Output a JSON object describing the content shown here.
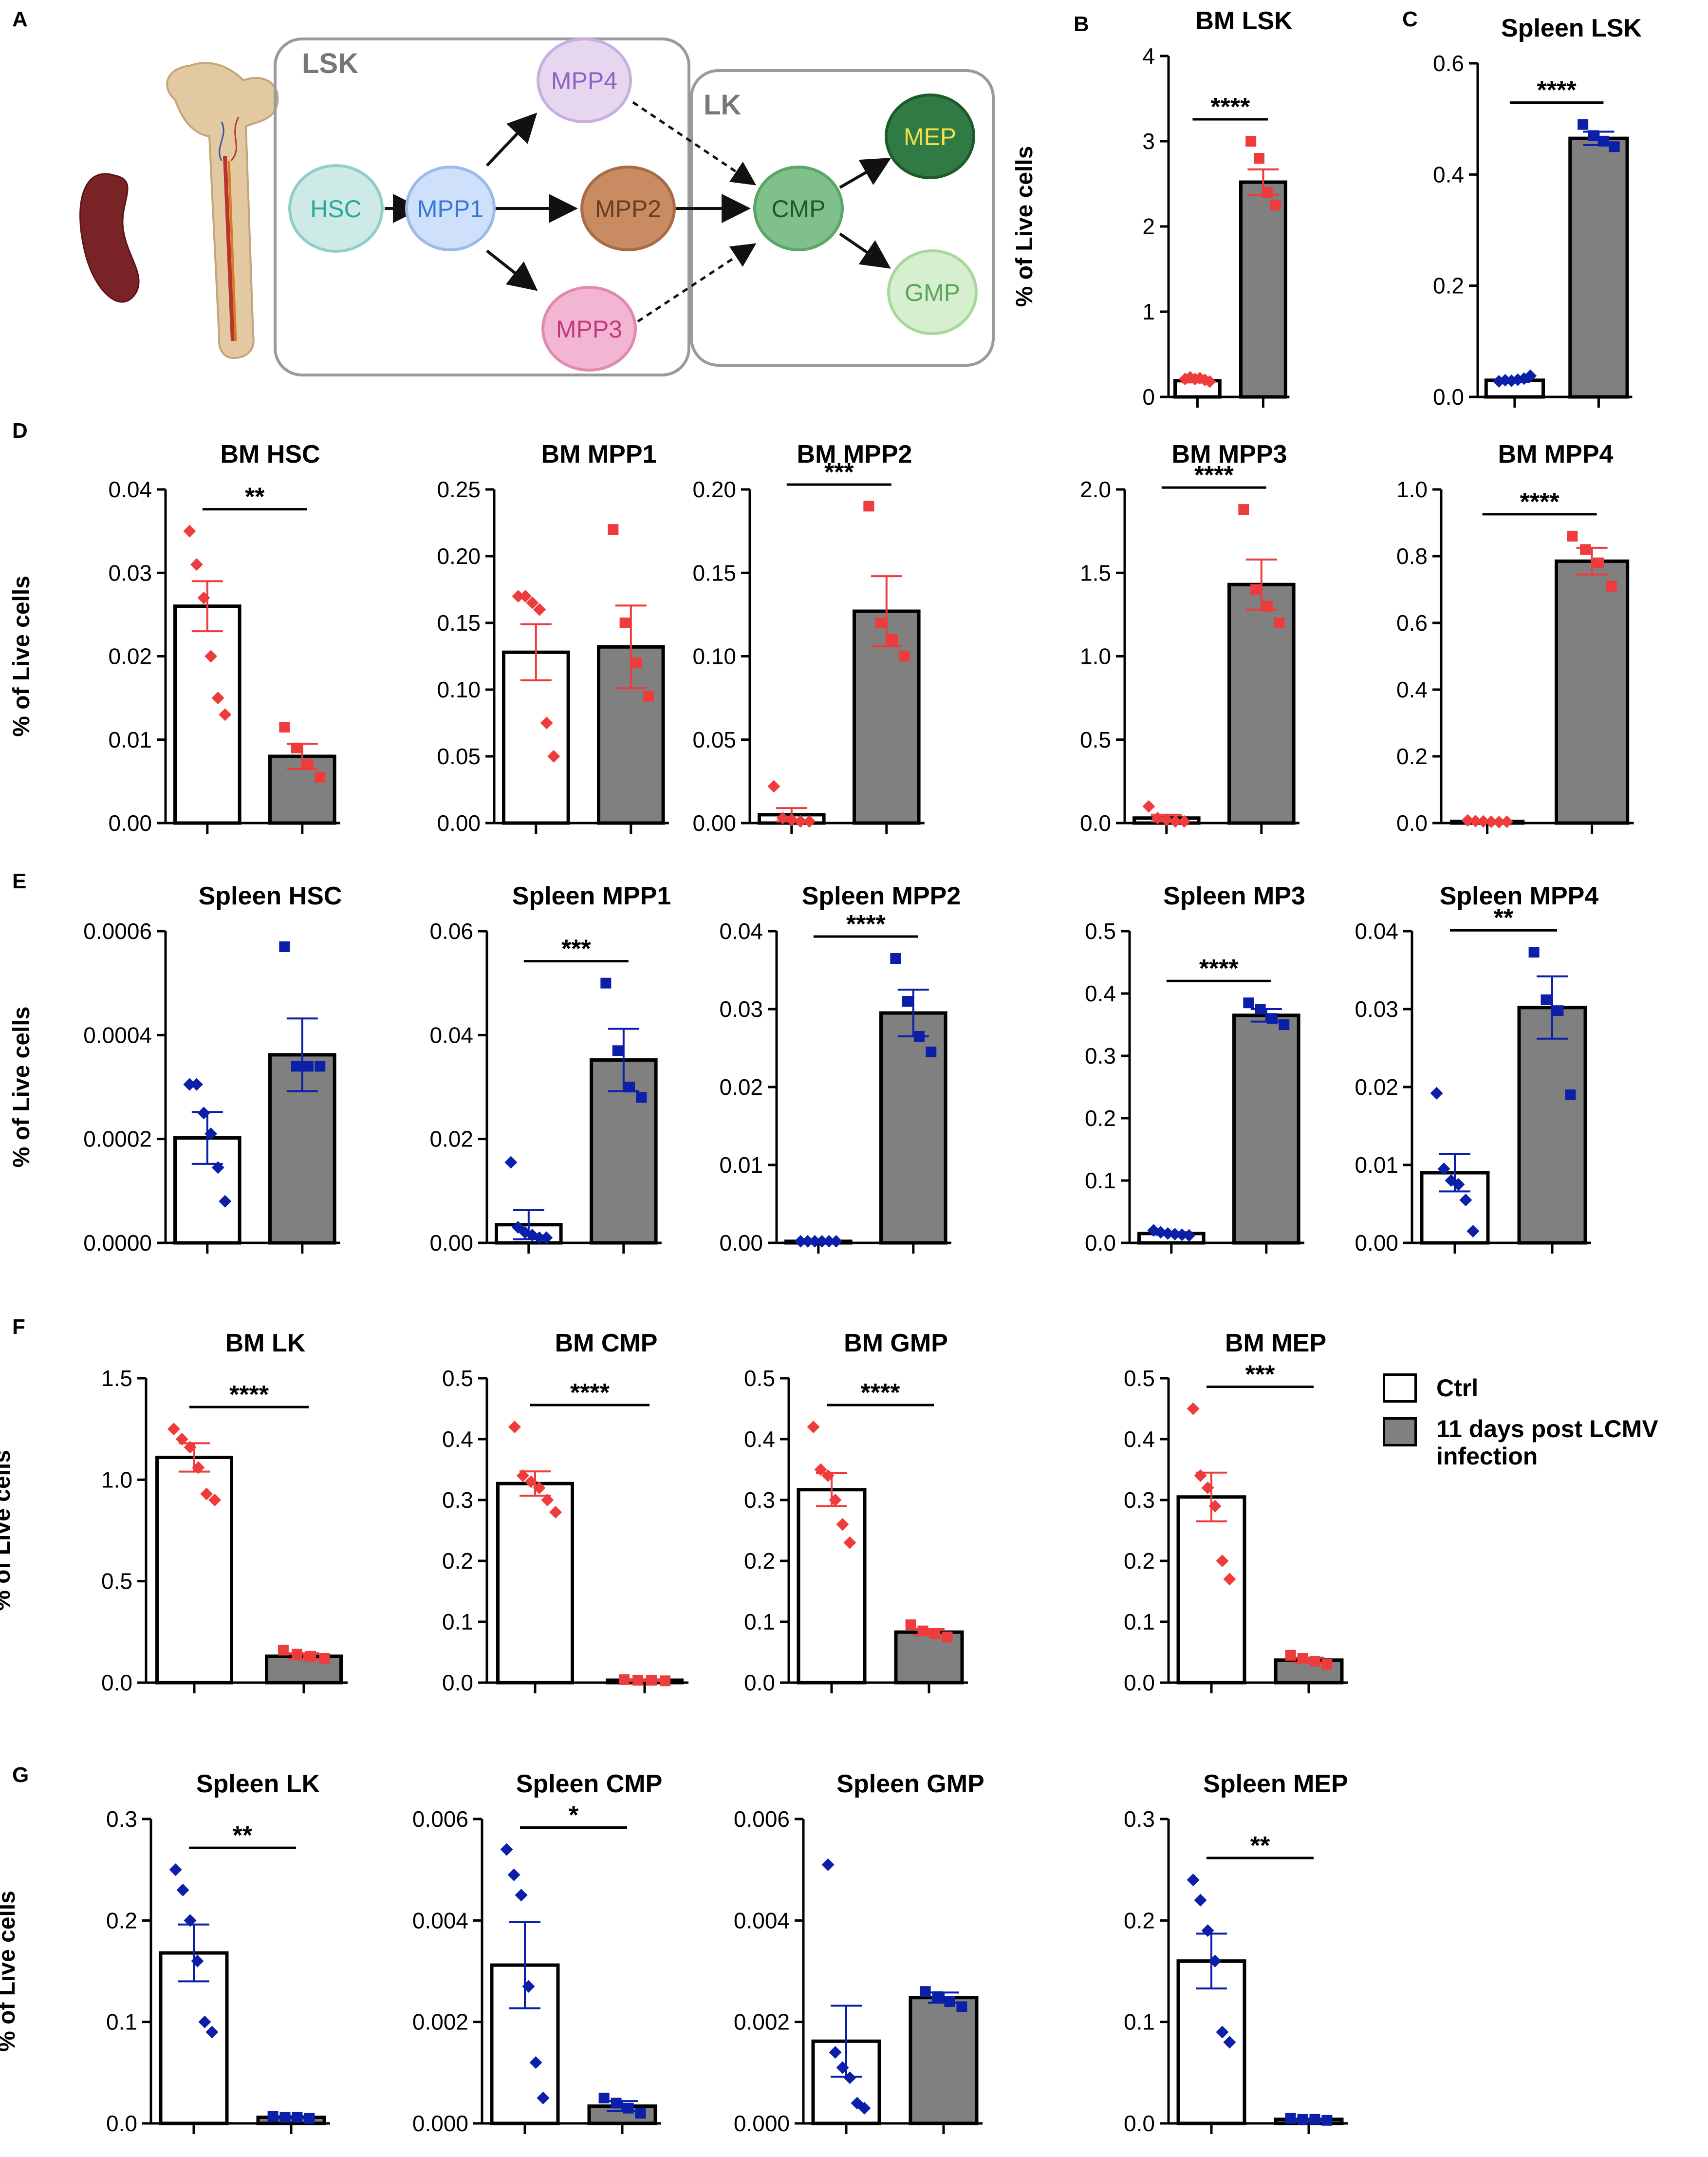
{
  "panel_labels": {
    "A": "A",
    "B": "B",
    "C": "C",
    "D": "D",
    "E": "E",
    "F": "F",
    "G": "G"
  },
  "diagram": {
    "lsk_label": "LSK",
    "lk_label": "LK",
    "nodes": {
      "hsc": "HSC",
      "mpp1": "MPP1",
      "mpp2": "MPP2",
      "mpp3": "MPP3",
      "mpp4": "MPP4",
      "cmp": "CMP",
      "mep": "MEP",
      "gmp": "GMP"
    }
  },
  "legend": {
    "ctrl": "Ctrl",
    "infected_line1": "11 days post LCMV",
    "infected_line2": "infection"
  },
  "colors": {
    "bm_points": "#ee3b3b",
    "spleen_points": "#0b1fa8",
    "ctrl_bar": "#ffffff",
    "infected_bar": "#808080",
    "bar_edge": "#000000"
  },
  "chart_data": [
    {
      "id": "B",
      "type": "bar",
      "title": "BM LSK",
      "ylabel": "% of Live cells",
      "ylim": [
        0,
        4
      ],
      "ticks": [
        "0",
        "1",
        "2",
        "3",
        "4"
      ],
      "tick_values": [
        0,
        1,
        2,
        3,
        4
      ],
      "categories": [
        "Ctrl",
        "11 days post LCMV infection"
      ],
      "values": [
        0.19,
        2.52
      ],
      "errors": [
        0.02,
        0.15
      ],
      "points": [
        [
          0.21,
          0.23,
          0.21,
          0.22,
          0.2,
          0.18
        ],
        [
          3.0,
          2.8,
          2.4,
          2.25
        ]
      ],
      "significance": "****",
      "point_color": "bm"
    },
    {
      "id": "C",
      "type": "bar",
      "title": "Spleen LSK",
      "ylabel": "",
      "ylim": [
        0,
        0.6
      ],
      "ticks": [
        "0.0",
        "0.2",
        "0.4",
        "0.6"
      ],
      "tick_values": [
        0,
        0.2,
        0.4,
        0.6
      ],
      "categories": [
        "Ctrl",
        "11 days post LCMV infection"
      ],
      "values": [
        0.03,
        0.465
      ],
      "errors": [
        0.003,
        0.012
      ],
      "points": [
        [
          0.028,
          0.03,
          0.029,
          0.031,
          0.033,
          0.038
        ],
        [
          0.49,
          0.47,
          0.46,
          0.45
        ]
      ],
      "significance": "****",
      "point_color": "spleen"
    },
    {
      "id": "D1",
      "type": "bar",
      "title": "BM HSC",
      "ylabel": "% of Live cells",
      "ylim": [
        0,
        0.04
      ],
      "ticks": [
        "0.00",
        "0.01",
        "0.02",
        "0.03",
        "0.04"
      ],
      "tick_values": [
        0,
        0.01,
        0.02,
        0.03,
        0.04
      ],
      "categories": [
        "Ctrl",
        "11 days post LCMV infection"
      ],
      "values": [
        0.026,
        0.008
      ],
      "errors": [
        0.003,
        0.0015
      ],
      "points": [
        [
          0.035,
          0.031,
          0.027,
          0.02,
          0.015,
          0.013
        ],
        [
          0.0115,
          0.009,
          0.007,
          0.0055
        ]
      ],
      "significance": "**",
      "point_color": "bm"
    },
    {
      "id": "D2",
      "type": "bar",
      "title": "BM MPP1",
      "ylabel": "",
      "ylim": [
        0,
        0.25
      ],
      "ticks": [
        "0.00",
        "0.05",
        "0.10",
        "0.15",
        "0.20",
        "0.25"
      ],
      "tick_values": [
        0,
        0.05,
        0.1,
        0.15,
        0.2,
        0.25
      ],
      "categories": [
        "Ctrl",
        "11 days post LCMV infection"
      ],
      "values": [
        0.128,
        0.132
      ],
      "errors": [
        0.021,
        0.031
      ],
      "points": [
        [
          0.17,
          0.17,
          0.165,
          0.16,
          0.075,
          0.05
        ],
        [
          0.22,
          0.15,
          0.12,
          0.095
        ]
      ],
      "significance": "",
      "point_color": "bm"
    },
    {
      "id": "D3",
      "type": "bar",
      "title": "BM MPP2",
      "ylabel": "",
      "ylim": [
        0,
        0.2
      ],
      "ticks": [
        "0.00",
        "0.05",
        "0.10",
        "0.15",
        "0.20"
      ],
      "tick_values": [
        0,
        0.05,
        0.1,
        0.15,
        0.2
      ],
      "categories": [
        "Ctrl",
        "11 days post LCMV infection"
      ],
      "values": [
        0.005,
        0.127
      ],
      "errors": [
        0.004,
        0.021
      ],
      "points": [
        [
          0.022,
          0.003,
          0.002,
          0.001,
          0.001
        ],
        [
          0.19,
          0.12,
          0.11,
          0.1
        ]
      ],
      "significance": "***",
      "point_color": "bm"
    },
    {
      "id": "D4",
      "type": "bar",
      "title": "BM MPP3",
      "ylabel": "",
      "ylim": [
        0,
        2.0
      ],
      "ticks": [
        "0.0",
        "0.5",
        "1.0",
        "1.5",
        "2.0"
      ],
      "tick_values": [
        0,
        0.5,
        1.0,
        1.5,
        2.0
      ],
      "categories": [
        "Ctrl",
        "11 days post LCMV infection"
      ],
      "values": [
        0.03,
        1.43
      ],
      "errors": [
        0.02,
        0.15
      ],
      "points": [
        [
          0.1,
          0.03,
          0.02,
          0.01,
          0.01
        ],
        [
          1.88,
          1.4,
          1.3,
          1.2
        ]
      ],
      "significance": "****",
      "point_color": "bm"
    },
    {
      "id": "D5",
      "type": "bar",
      "title": "BM MPP4",
      "ylabel": "",
      "ylim": [
        0,
        1.0
      ],
      "ticks": [
        "0.0",
        "0.2",
        "0.4",
        "0.6",
        "0.8",
        "1.0"
      ],
      "tick_values": [
        0,
        0.2,
        0.4,
        0.6,
        0.8,
        1.0
      ],
      "categories": [
        "Ctrl",
        "11 days post LCMV infection"
      ],
      "values": [
        0.005,
        0.785
      ],
      "errors": [
        0.002,
        0.04
      ],
      "points": [
        [
          0.008,
          0.006,
          0.005,
          0.004,
          0.003,
          0.004
        ],
        [
          0.86,
          0.82,
          0.78,
          0.71
        ]
      ],
      "significance": "****",
      "point_color": "bm"
    },
    {
      "id": "E1",
      "type": "bar",
      "title": "Spleen HSC",
      "ylabel": "% of Live cells",
      "ylim": [
        0,
        0.0006
      ],
      "ticks": [
        "0.0000",
        "0.0002",
        "0.0004",
        "0.0006"
      ],
      "tick_values": [
        0,
        0.0002,
        0.0004,
        0.0006
      ],
      "categories": [
        "Ctrl",
        "11 days post LCMV infection"
      ],
      "values": [
        0.000202,
        0.000362
      ],
      "errors": [
        5e-05,
        7e-05
      ],
      "points": [
        [
          0.000305,
          0.000305,
          0.00025,
          0.00021,
          0.000145,
          8e-05
        ],
        [
          0.00057,
          0.00034,
          0.00034,
          0.00034
        ]
      ],
      "significance": "",
      "point_color": "spleen"
    },
    {
      "id": "E2",
      "type": "bar",
      "title": "Spleen MPP1",
      "ylabel": "",
      "ylim": [
        0,
        0.06
      ],
      "ticks": [
        "0.00",
        "0.02",
        "0.04",
        "0.06"
      ],
      "tick_values": [
        0,
        0.02,
        0.04,
        0.06
      ],
      "categories": [
        "Ctrl",
        "11 days post LCMV infection"
      ],
      "values": [
        0.0035,
        0.0352
      ],
      "errors": [
        0.0028,
        0.006
      ],
      "points": [
        [
          0.0155,
          0.003,
          0.002,
          0.0015,
          0.001,
          0.001
        ],
        [
          0.05,
          0.037,
          0.03,
          0.028
        ]
      ],
      "significance": "***",
      "point_color": "spleen"
    },
    {
      "id": "E3",
      "type": "bar",
      "title": "Spleen MPP2",
      "ylabel": "",
      "ylim": [
        0,
        0.04
      ],
      "ticks": [
        "0.00",
        "0.01",
        "0.02",
        "0.03",
        "0.04"
      ],
      "tick_values": [
        0,
        0.01,
        0.02,
        0.03,
        0.04
      ],
      "categories": [
        "Ctrl",
        "11 days post LCMV infection"
      ],
      "values": [
        0.0002,
        0.0295
      ],
      "errors": [
        0.0001,
        0.003
      ],
      "points": [
        [
          0.0002,
          0.0002,
          0.0002,
          0.0002,
          0.0002,
          0.0002
        ],
        [
          0.0365,
          0.031,
          0.0265,
          0.0245
        ]
      ],
      "significance": "****",
      "point_color": "spleen"
    },
    {
      "id": "E4",
      "type": "bar",
      "title": "Spleen MP3",
      "ylabel": "",
      "ylim": [
        0,
        0.5
      ],
      "ticks": [
        "0.0",
        "0.1",
        "0.2",
        "0.3",
        "0.4",
        "0.5"
      ],
      "tick_values": [
        0,
        0.1,
        0.2,
        0.3,
        0.4,
        0.5
      ],
      "categories": [
        "Ctrl",
        "11 days post LCMV infection"
      ],
      "values": [
        0.015,
        0.365
      ],
      "errors": [
        0.002,
        0.01
      ],
      "points": [
        [
          0.02,
          0.017,
          0.015,
          0.014,
          0.013,
          0.012
        ],
        [
          0.385,
          0.375,
          0.36,
          0.35
        ]
      ],
      "significance": "****",
      "point_color": "spleen"
    },
    {
      "id": "E5",
      "type": "bar",
      "title": "Spleen MPP4",
      "ylabel": "",
      "ylim": [
        0,
        0.04
      ],
      "ticks": [
        "0.00",
        "0.01",
        "0.02",
        "0.03",
        "0.04"
      ],
      "tick_values": [
        0,
        0.01,
        0.02,
        0.03,
        0.04
      ],
      "categories": [
        "Ctrl",
        "11 days post LCMV infection"
      ],
      "values": [
        0.009,
        0.0302
      ],
      "errors": [
        0.0024,
        0.004
      ],
      "points": [
        [
          0.0192,
          0.0095,
          0.008,
          0.0075,
          0.0055,
          0.0015
        ],
        [
          0.0373,
          0.0312,
          0.0298,
          0.019
        ]
      ],
      "significance": "**",
      "point_color": "spleen"
    },
    {
      "id": "F1",
      "type": "bar",
      "title": "BM LK",
      "ylabel": "% of Live cells",
      "ylim": [
        0,
        1.5
      ],
      "ticks": [
        "0.0",
        "0.5",
        "1.0",
        "1.5"
      ],
      "tick_values": [
        0,
        0.5,
        1.0,
        1.5
      ],
      "categories": [
        "Ctrl",
        "11 days post LCMV infection"
      ],
      "values": [
        1.11,
        0.13
      ],
      "errors": [
        0.07,
        0.015
      ],
      "points": [
        [
          1.25,
          1.2,
          1.16,
          1.06,
          0.93,
          0.9
        ],
        [
          0.16,
          0.14,
          0.13,
          0.12
        ]
      ],
      "significance": "****",
      "point_color": "bm"
    },
    {
      "id": "F2",
      "type": "bar",
      "title": "BM CMP",
      "ylabel": "",
      "ylim": [
        0,
        0.5
      ],
      "ticks": [
        "0.0",
        "0.1",
        "0.2",
        "0.3",
        "0.4",
        "0.5"
      ],
      "tick_values": [
        0,
        0.1,
        0.2,
        0.3,
        0.4,
        0.5
      ],
      "categories": [
        "Ctrl",
        "11 days post LCMV infection"
      ],
      "values": [
        0.327,
        0.004
      ],
      "errors": [
        0.02,
        0.001
      ],
      "points": [
        [
          0.42,
          0.34,
          0.33,
          0.32,
          0.3,
          0.28
        ],
        [
          0.005,
          0.004,
          0.004,
          0.003
        ]
      ],
      "significance": "****",
      "point_color": "bm"
    },
    {
      "id": "F3",
      "type": "bar",
      "title": "BM GMP",
      "ylabel": "",
      "ylim": [
        0,
        0.5
      ],
      "ticks": [
        "0.0",
        "0.1",
        "0.2",
        "0.3",
        "0.4",
        "0.5"
      ],
      "tick_values": [
        0,
        0.1,
        0.2,
        0.3,
        0.4,
        0.5
      ],
      "categories": [
        "Ctrl",
        "11 days post LCMV infection"
      ],
      "values": [
        0.317,
        0.083
      ],
      "errors": [
        0.027,
        0.005
      ],
      "points": [
        [
          0.42,
          0.35,
          0.34,
          0.3,
          0.26,
          0.23
        ],
        [
          0.095,
          0.085,
          0.08,
          0.075
        ]
      ],
      "significance": "****",
      "point_color": "bm"
    },
    {
      "id": "F4",
      "type": "bar",
      "title": "BM MEP",
      "ylabel": "",
      "ylim": [
        0,
        0.5
      ],
      "ticks": [
        "0.0",
        "0.1",
        "0.2",
        "0.3",
        "0.4",
        "0.5"
      ],
      "tick_values": [
        0,
        0.1,
        0.2,
        0.3,
        0.4,
        0.5
      ],
      "categories": [
        "Ctrl",
        "11 days post LCMV infection"
      ],
      "values": [
        0.305,
        0.037
      ],
      "errors": [
        0.04,
        0.004
      ],
      "points": [
        [
          0.45,
          0.34,
          0.32,
          0.29,
          0.2,
          0.17
        ],
        [
          0.045,
          0.04,
          0.035,
          0.03
        ]
      ],
      "significance": "***",
      "point_color": "bm"
    },
    {
      "id": "G1",
      "type": "bar",
      "title": "Spleen LK",
      "ylabel": "% of Live cells",
      "ylim": [
        0,
        0.3
      ],
      "ticks": [
        "0.0",
        "0.1",
        "0.2",
        "0.3"
      ],
      "tick_values": [
        0,
        0.1,
        0.2,
        0.3
      ],
      "categories": [
        "Ctrl",
        "11 days post LCMV infection"
      ],
      "values": [
        0.168,
        0.006
      ],
      "errors": [
        0.028,
        0.001
      ],
      "points": [
        [
          0.25,
          0.23,
          0.2,
          0.16,
          0.1,
          0.09
        ],
        [
          0.007,
          0.006,
          0.006,
          0.005
        ]
      ],
      "significance": "**",
      "point_color": "spleen"
    },
    {
      "id": "G2",
      "type": "bar",
      "title": "Spleen CMP",
      "ylabel": "",
      "ylim": [
        0,
        0.006
      ],
      "ticks": [
        "0.000",
        "0.002",
        "0.004",
        "0.006"
      ],
      "tick_values": [
        0,
        0.002,
        0.004,
        0.006
      ],
      "categories": [
        "Ctrl",
        "11 days post LCMV infection"
      ],
      "values": [
        0.00312,
        0.00034
      ],
      "errors": [
        0.00085,
        0.0001
      ],
      "points": [
        [
          0.0054,
          0.0049,
          0.0045,
          0.0027,
          0.0012,
          0.0005
        ],
        [
          0.0005,
          0.0004,
          0.0003,
          0.0002
        ]
      ],
      "significance": "*",
      "point_color": "spleen"
    },
    {
      "id": "G3",
      "type": "bar",
      "title": "Spleen GMP",
      "ylabel": "",
      "ylim": [
        0,
        0.006
      ],
      "ticks": [
        "0.000",
        "0.002",
        "0.004",
        "0.006"
      ],
      "tick_values": [
        0,
        0.002,
        0.004,
        0.006
      ],
      "categories": [
        "Ctrl",
        "11 days post LCMV infection"
      ],
      "values": [
        0.00162,
        0.00248
      ],
      "errors": [
        0.0007,
        0.0001
      ],
      "points": [
        [
          0.0051,
          0.0014,
          0.0011,
          0.0009,
          0.0004,
          0.0003
        ],
        [
          0.0026,
          0.0025,
          0.0024,
          0.0023
        ]
      ],
      "significance": "",
      "point_color": "spleen"
    },
    {
      "id": "G4",
      "type": "bar",
      "title": "Spleen MEP",
      "ylabel": "",
      "ylim": [
        0,
        0.3
      ],
      "ticks": [
        "0.0",
        "0.1",
        "0.2",
        "0.3"
      ],
      "tick_values": [
        0,
        0.1,
        0.2,
        0.3
      ],
      "categories": [
        "Ctrl",
        "11 days post LCMV infection"
      ],
      "values": [
        0.16,
        0.004
      ],
      "errors": [
        0.027,
        0.0005
      ],
      "points": [
        [
          0.24,
          0.22,
          0.19,
          0.16,
          0.09,
          0.08
        ],
        [
          0.005,
          0.004,
          0.004,
          0.003
        ]
      ],
      "significance": "**",
      "point_color": "spleen"
    }
  ]
}
